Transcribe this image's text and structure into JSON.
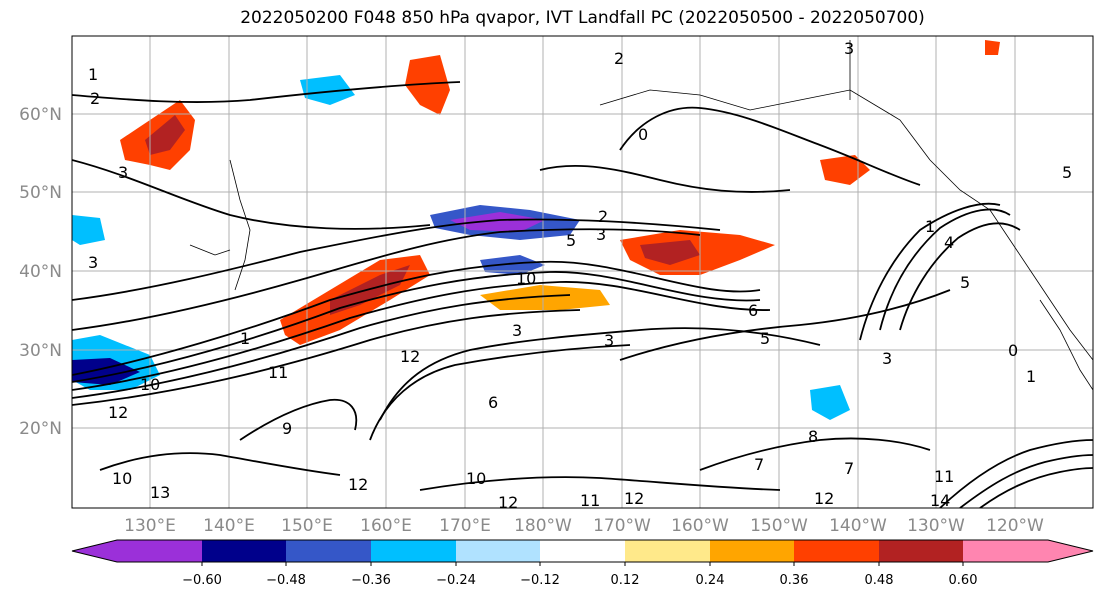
{
  "title": "2022050200 F048 850 hPa qvapor, IVT Landfall PC (2022050500 - 2022050700)",
  "latitude_labels": [
    "60°N",
    "50°N",
    "40°N",
    "30°N",
    "20°N"
  ],
  "longitude_labels": [
    "130°E",
    "140°E",
    "150°E",
    "160°E",
    "170°E",
    "180°W",
    "170°W",
    "160°W",
    "150°W",
    "140°W",
    "130°W",
    "120°W"
  ],
  "colorbar": {
    "tick_labels": [
      "−0.60",
      "−0.48",
      "−0.36",
      "−0.24",
      "−0.12",
      "0.12",
      "0.24",
      "0.36",
      "0.48",
      "0.60"
    ],
    "colors": [
      "#9b30d9",
      "#00008b",
      "#3557c8",
      "#00bfff",
      "#b0e2ff",
      "#ffffff",
      "#ffe98a",
      "#ffa500",
      "#ff4000",
      "#b22222",
      "#ff85b0"
    ]
  },
  "contour_labels": [
    "1",
    "2",
    "2",
    "3",
    "0",
    "3",
    "5",
    "5",
    "2",
    "3",
    "1",
    "4",
    "5",
    "10",
    "3",
    "3",
    "6",
    "3",
    "5",
    "1",
    "3",
    "0",
    "1",
    "12",
    "10",
    "11",
    "12",
    "10",
    "12",
    "12",
    "11",
    "12",
    "8",
    "7",
    "6",
    "9",
    "10",
    "12",
    "13",
    "14",
    "11",
    "7"
  ]
}
